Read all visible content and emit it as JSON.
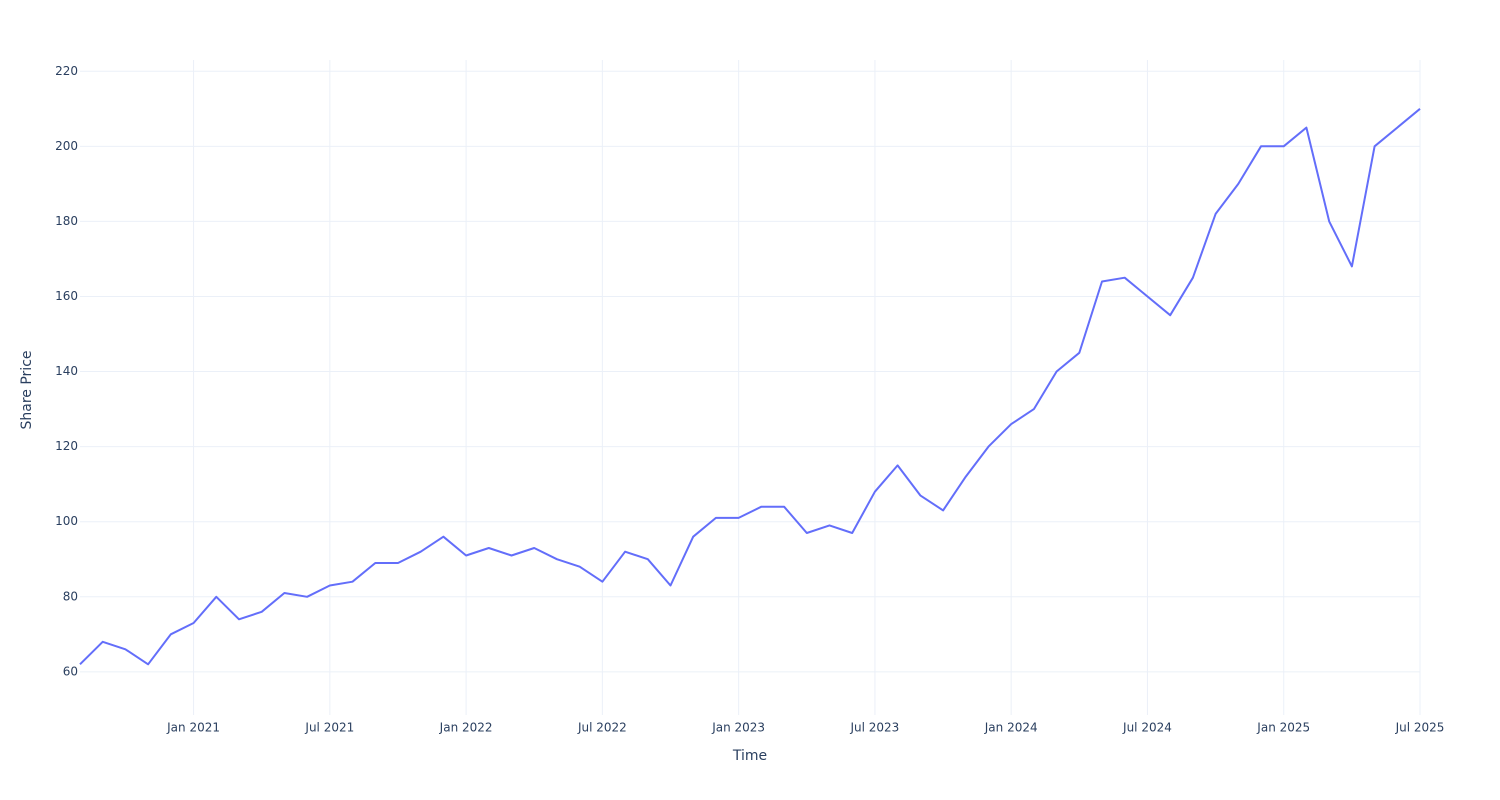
{
  "chart_data": {
    "type": "line",
    "x_label": "Time",
    "y_label": "Share Price",
    "x": [
      "2020-08",
      "2020-09",
      "2020-10",
      "2020-11",
      "2020-12",
      "2021-01",
      "2021-02",
      "2021-03",
      "2021-04",
      "2021-05",
      "2021-06",
      "2021-07",
      "2021-08",
      "2021-09",
      "2021-10",
      "2021-11",
      "2021-12",
      "2022-01",
      "2022-02",
      "2022-03",
      "2022-04",
      "2022-05",
      "2022-06",
      "2022-07",
      "2022-08",
      "2022-09",
      "2022-10",
      "2022-11",
      "2022-12",
      "2023-01",
      "2023-02",
      "2023-03",
      "2023-04",
      "2023-05",
      "2023-06",
      "2023-07",
      "2023-08",
      "2023-09",
      "2023-10",
      "2023-11",
      "2023-12",
      "2024-01",
      "2024-02",
      "2024-03",
      "2024-04",
      "2024-05",
      "2024-06",
      "2024-07",
      "2024-08",
      "2024-09",
      "2024-10",
      "2024-11",
      "2024-12",
      "2025-01",
      "2025-02",
      "2025-03",
      "2025-04",
      "2025-05",
      "2025-06",
      "2025-07"
    ],
    "series": [
      {
        "name": "Share Price",
        "color": "#636efa",
        "values": [
          62,
          68,
          66,
          62,
          70,
          73,
          80,
          74,
          76,
          81,
          80,
          83,
          84,
          89,
          89,
          92,
          96,
          91,
          93,
          91,
          93,
          90,
          88,
          84,
          92,
          90,
          83,
          96,
          101,
          101,
          104,
          104,
          97,
          99,
          97,
          108,
          115,
          107,
          103,
          112,
          120,
          126,
          130,
          140,
          145,
          164,
          165,
          160,
          155,
          165,
          182,
          190,
          200,
          200,
          205,
          180,
          168,
          200,
          205,
          210
        ]
      }
    ],
    "xlim": [
      "2020-08",
      "2025-07"
    ],
    "xticks": [
      {
        "value": "2021-01",
        "label": "Jan 2021"
      },
      {
        "value": "2021-07",
        "label": "Jul 2021"
      },
      {
        "value": "2022-01",
        "label": "Jan 2022"
      },
      {
        "value": "2022-07",
        "label": "Jul 2022"
      },
      {
        "value": "2023-01",
        "label": "Jan 2023"
      },
      {
        "value": "2023-07",
        "label": "Jul 2023"
      },
      {
        "value": "2024-01",
        "label": "Jan 2024"
      },
      {
        "value": "2024-07",
        "label": "Jul 2024"
      },
      {
        "value": "2025-01",
        "label": "Jan 2025"
      },
      {
        "value": "2025-07",
        "label": "Jul 2025"
      }
    ],
    "ylim": [
      48.5,
      223
    ],
    "yticks": [
      60,
      80,
      100,
      120,
      140,
      160,
      180,
      200,
      220
    ],
    "grid": true
  }
}
